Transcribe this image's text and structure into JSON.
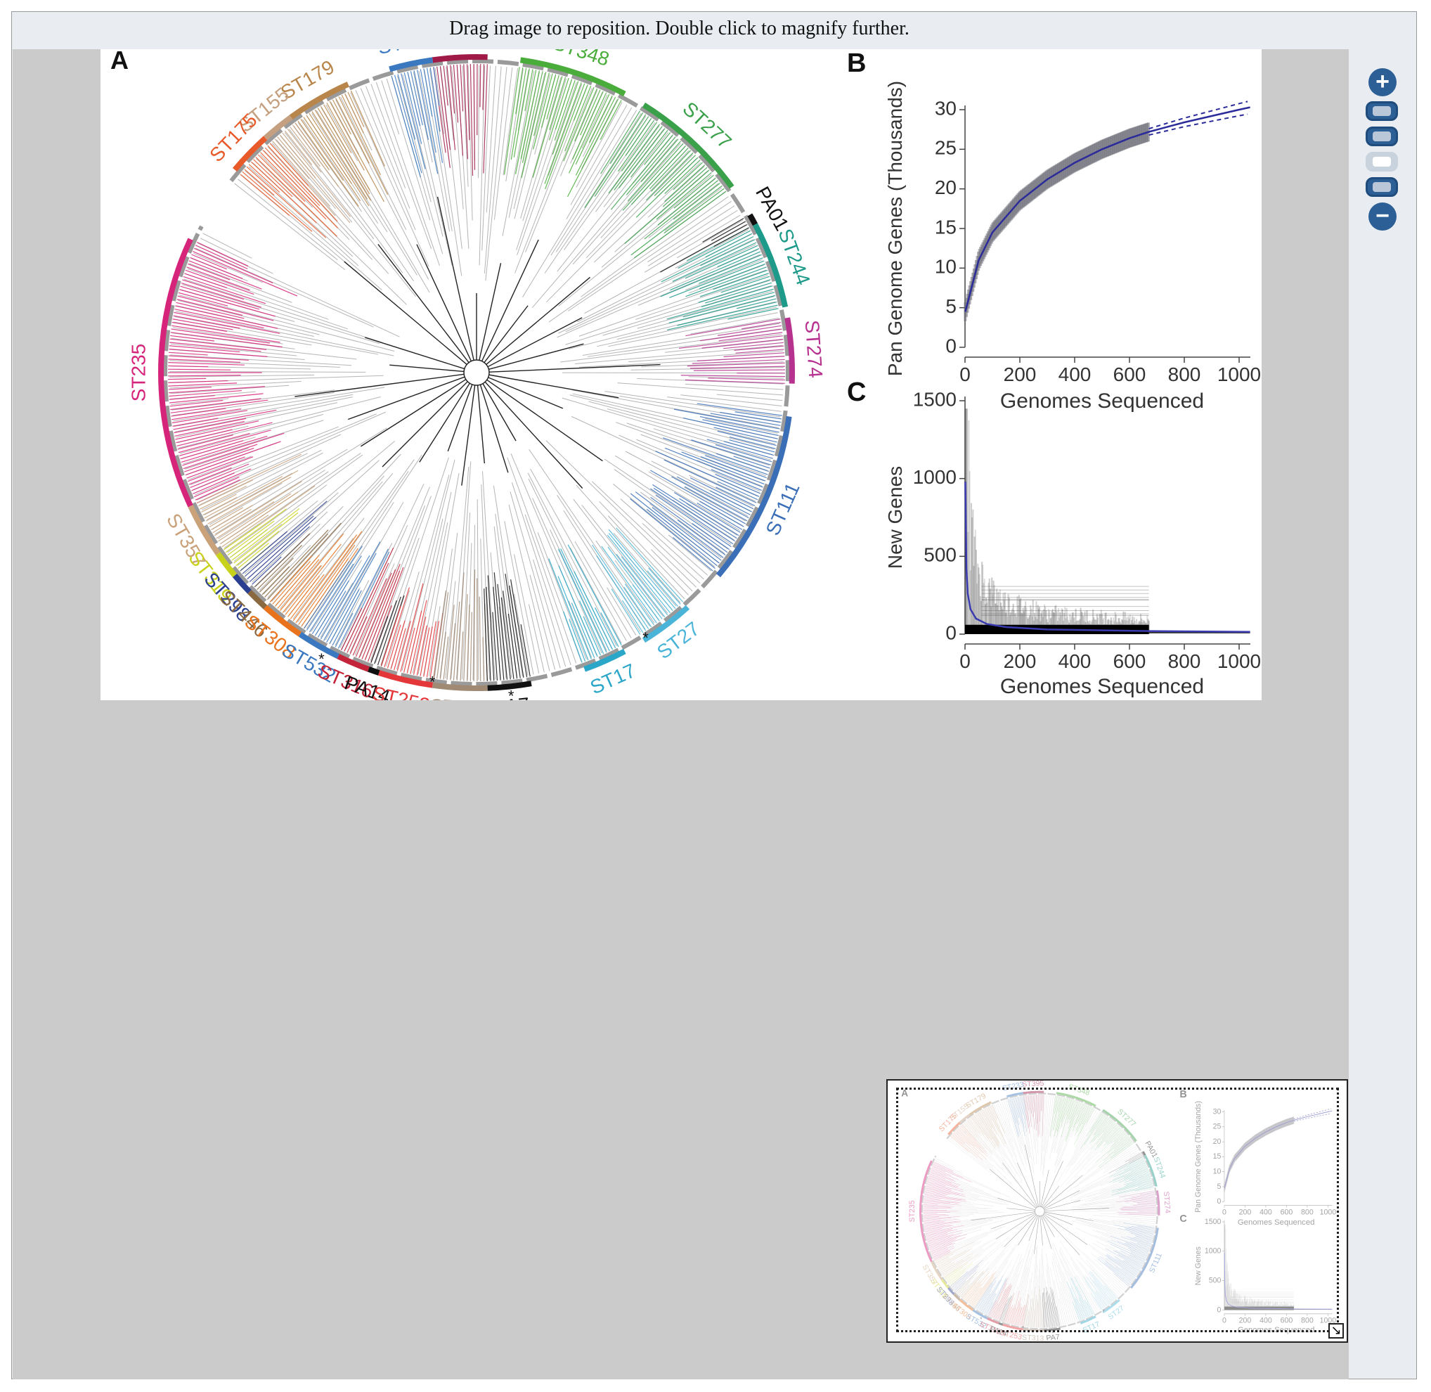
{
  "viewer": {
    "hint": "Drag image to reposition. Double click to magnify further."
  },
  "zoom_controls": {
    "zoom_in_icon": "plus-circle-icon",
    "zoom_out_icon": "minus-circle-icon",
    "levels": 4,
    "current_level": 3
  },
  "figure": {
    "panel_a": {
      "label": "A",
      "clades": [
        {
          "name": "ST235",
          "color": "#d6247a"
        },
        {
          "name": "ST357",
          "color": "#c9a27a"
        },
        {
          "name": "ST319",
          "color": "#c8d21c"
        },
        {
          "name": "ST298",
          "color": "#2a3f8f"
        },
        {
          "name": "ST446",
          "color": "#8a6840"
        },
        {
          "name": "ST308",
          "color": "#e8731c"
        },
        {
          "name": "ST532",
          "color": "#3a78c0"
        },
        {
          "name": "ST316",
          "color": "#c3243a"
        },
        {
          "name": "PA14",
          "color": "#111111"
        },
        {
          "name": "ST253",
          "color": "#e4373a"
        },
        {
          "name": "ST313",
          "color": "#a08a74"
        },
        {
          "name": "PA7",
          "color": "#111111"
        },
        {
          "name": "ST17",
          "color": "#2aa6c8"
        },
        {
          "name": "ST27",
          "color": "#4ab4d8"
        },
        {
          "name": "ST111",
          "color": "#3a6fb8"
        },
        {
          "name": "ST274",
          "color": "#b6328e"
        },
        {
          "name": "ST244",
          "color": "#1d9a8a"
        },
        {
          "name": "PA01",
          "color": "#111111"
        },
        {
          "name": "ST277",
          "color": "#3aa04a"
        },
        {
          "name": "ST348",
          "color": "#4aac3a"
        },
        {
          "name": "ST395",
          "color": "#a01a48"
        },
        {
          "name": "ST233",
          "color": "#3a78c0"
        },
        {
          "name": "ST179",
          "color": "#b8864a"
        },
        {
          "name": "ST155",
          "color": "#c4a080"
        },
        {
          "name": "ST175",
          "color": "#e85a2a"
        }
      ],
      "asterisk": "*"
    },
    "panel_b": {
      "label": "B",
      "ylabel": "Pan Genome Genes (Thousands)",
      "xlabel": "Genomes Sequenced"
    },
    "panel_c": {
      "label": "C",
      "ylabel": "New Genes",
      "xlabel": "Genomes Sequenced"
    }
  },
  "chart_data": [
    {
      "type": "scatter",
      "panel": "B",
      "xlabel": "Genomes Sequenced",
      "ylabel": "Pan Genome Genes (Thousands)",
      "xlim": [
        0,
        1000
      ],
      "ylim": [
        0,
        30
      ],
      "xticks": [
        0,
        200,
        400,
        600,
        800,
        1000
      ],
      "yticks": [
        0,
        5,
        10,
        15,
        20,
        25,
        30
      ],
      "fit_curve": {
        "x": [
          1,
          50,
          100,
          200,
          300,
          400,
          500,
          600,
          671,
          800,
          1000,
          1040
        ],
        "y": [
          4.5,
          11,
          14.5,
          18.5,
          21.2,
          23.3,
          25,
          26.4,
          27.2,
          28.4,
          30,
          30.3
        ]
      },
      "point_cloud_x_max": 671,
      "colors": {
        "points": "#6f6f7a",
        "fit": "#2b2b9a"
      }
    },
    {
      "type": "scatter",
      "panel": "C",
      "xlabel": "Genomes Sequenced",
      "ylabel": "New Genes",
      "xlim": [
        0,
        1000
      ],
      "ylim": [
        0,
        1500
      ],
      "xticks": [
        0,
        200,
        400,
        600,
        800,
        1000
      ],
      "yticks": [
        0,
        500,
        1000,
        1500
      ],
      "fit_curve": {
        "x": [
          1,
          5,
          10,
          20,
          40,
          80,
          150,
          300,
          671,
          1040
        ],
        "y": [
          980,
          420,
          260,
          160,
          100,
          65,
          45,
          30,
          20,
          15
        ]
      },
      "point_cloud_x_max": 671,
      "colors": {
        "points": "#000000",
        "fit": "#3b3bb0"
      }
    }
  ],
  "minimap": {
    "resize_icon": "resize-arrow-icon",
    "resize_glyph": "↘"
  }
}
